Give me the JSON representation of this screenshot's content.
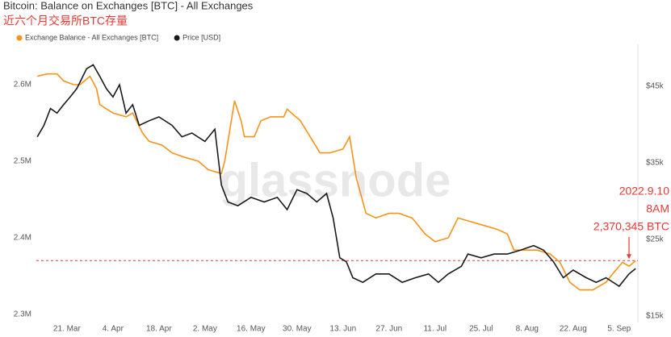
{
  "chart_data": {
    "type": "line",
    "title": "Bitcoin: Balance on Exchanges [BTC] - All Exchanges",
    "subtitle": "近六个月交易所BTC存量",
    "watermark": "glassnode",
    "annotation": {
      "lines": [
        "2022.9.10",
        "8AM",
        "2,370,345 BTC"
      ],
      "value": 2.370345,
      "x": 171,
      "color": "#e53935"
    },
    "xlim": [
      -9.3,
      173.7
    ],
    "xticks": [
      {
        "value": 0,
        "label": "21. Mar"
      },
      {
        "value": 14,
        "label": "4. Apr"
      },
      {
        "value": 28,
        "label": "18. Apr"
      },
      {
        "value": 42,
        "label": "2. May"
      },
      {
        "value": 56,
        "label": "16. May"
      },
      {
        "value": 70,
        "label": "30. May"
      },
      {
        "value": 84,
        "label": "13. Jun"
      },
      {
        "value": 98,
        "label": "27. Jun"
      },
      {
        "value": 112,
        "label": "11. Jul"
      },
      {
        "value": 126,
        "label": "25. Jul"
      },
      {
        "value": 140,
        "label": "8. Aug"
      },
      {
        "value": 154,
        "label": "22. Aug"
      },
      {
        "value": 168,
        "label": "5. Sep"
      }
    ],
    "ylim": [
      2.2916,
      2.6495
    ],
    "yticks": [
      {
        "value": 2.3,
        "label": "2.3M"
      },
      {
        "value": 2.4,
        "label": "2.4M"
      },
      {
        "value": 2.5,
        "label": "2.5M"
      },
      {
        "value": 2.6,
        "label": "2.6M"
      }
    ],
    "y2lim": [
      14.37,
      50.16
    ],
    "y2ticks": [
      {
        "value": 15,
        "label": "$15k"
      },
      {
        "value": 25,
        "label": "$25k"
      },
      {
        "value": 35,
        "label": "$35k"
      },
      {
        "value": 45,
        "label": "$45k"
      }
    ],
    "series": [
      {
        "name": "Exchange Balance - All Exchanges [BTC]",
        "color": "#f7931a",
        "x": [
          -9,
          -6,
          -3,
          -1,
          2,
          4,
          7,
          9,
          10,
          14,
          18,
          20,
          23,
          25,
          29,
          32,
          36,
          40,
          43,
          47,
          48,
          51,
          53,
          54,
          57,
          59,
          62,
          66,
          67,
          71,
          74,
          77,
          80,
          84,
          86,
          88,
          91,
          94,
          98,
          101,
          105,
          109,
          112,
          116,
          119,
          123,
          127,
          131,
          134,
          136,
          139,
          143,
          147,
          150,
          153,
          156,
          160,
          164,
          166,
          169,
          171,
          173
        ],
        "values": [
          2.611,
          2.614,
          2.614,
          2.605,
          2.6,
          2.6,
          2.611,
          2.595,
          2.574,
          2.563,
          2.558,
          2.563,
          2.537,
          2.526,
          2.521,
          2.511,
          2.505,
          2.5,
          2.489,
          2.484,
          2.5,
          2.579,
          2.553,
          2.532,
          2.532,
          2.553,
          2.558,
          2.558,
          2.568,
          2.553,
          2.532,
          2.511,
          2.511,
          2.516,
          2.532,
          2.479,
          2.432,
          2.426,
          2.432,
          2.432,
          2.426,
          2.405,
          2.395,
          2.4,
          2.426,
          2.421,
          2.416,
          2.411,
          2.405,
          2.384,
          2.384,
          2.384,
          2.379,
          2.368,
          2.342,
          2.332,
          2.332,
          2.342,
          2.353,
          2.368,
          2.363,
          2.37
        ]
      },
      {
        "name": "Price [USD]",
        "color": "#1a1a1a",
        "axis": "y2",
        "x": [
          -9,
          -7,
          -5,
          -3,
          -1,
          1,
          3,
          6,
          8,
          10,
          12,
          14,
          16,
          18,
          20,
          22,
          25,
          28,
          32,
          35,
          38,
          42,
          45,
          47,
          49,
          52,
          56,
          60,
          64,
          67,
          70,
          73,
          76,
          79,
          81,
          83,
          85,
          87,
          90,
          94,
          98,
          102,
          106,
          110,
          113,
          116,
          120,
          122,
          126,
          130,
          134,
          138,
          142,
          145,
          148,
          151,
          154,
          158,
          161,
          164,
          168,
          171,
          173
        ],
        "values": [
          38.4,
          39.9,
          42.1,
          41.5,
          42.6,
          43.6,
          44.7,
          47.3,
          47.8,
          46.3,
          44.7,
          43.6,
          45.2,
          41.5,
          42.6,
          39.9,
          40.5,
          41,
          39.9,
          38.4,
          38.9,
          37.8,
          39.4,
          32.1,
          29.9,
          29.4,
          30.5,
          29.9,
          30.5,
          28.9,
          31.5,
          31,
          29.9,
          31,
          27.8,
          22.6,
          22.1,
          20,
          19.4,
          20.5,
          20.5,
          19.4,
          20,
          20.5,
          19.4,
          20.5,
          21.5,
          23.1,
          22.6,
          23.1,
          23.1,
          23.6,
          24.2,
          23.6,
          22.1,
          20,
          21,
          20,
          19.4,
          20,
          18.9,
          20.5,
          21.2
        ]
      }
    ]
  }
}
